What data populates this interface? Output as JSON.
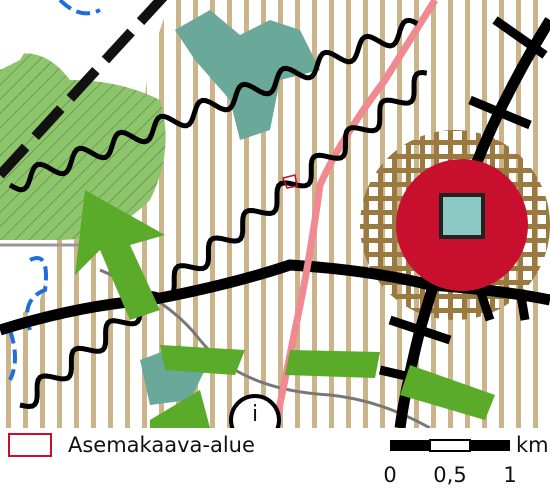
{
  "legend": {
    "label": "Asemakaava-alue"
  },
  "map": {
    "info_symbol": "i"
  },
  "scale_bar": {
    "unit": "km",
    "labels": [
      "0",
      "0,5",
      "1"
    ]
  }
}
